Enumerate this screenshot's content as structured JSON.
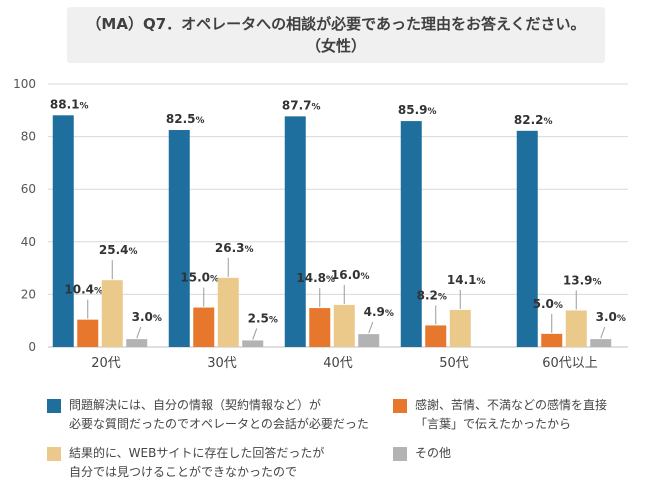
{
  "title": {
    "line1": "（MA）Q7．オペレータへの相談が必要であった理由をお答えください。",
    "line2": "（女性）"
  },
  "colors": {
    "series": [
      "#1f6f9e",
      "#e8772e",
      "#ebc98a",
      "#b3b3b3"
    ],
    "grid": "#d9d9d9",
    "title_bg": "#f0f0f0"
  },
  "chart_data": {
    "type": "bar",
    "categories": [
      "20代",
      "30代",
      "40代",
      "50代",
      "60代以上"
    ],
    "ylim": [
      0,
      100
    ],
    "yticks": [
      0,
      20,
      40,
      60,
      80,
      100
    ],
    "xlabel": "",
    "ylabel": "",
    "grid": true,
    "legend_position": "bottom",
    "unit": "%",
    "series": [
      {
        "name_lines": [
          "問題解決には、自分の情報（契約情報など）が",
          "必要な質問だったのでオペレータとの会話が必要だった"
        ],
        "values": [
          88.1,
          82.5,
          87.7,
          85.9,
          82.2
        ],
        "labels": [
          "88.1",
          "82.5",
          "87.7",
          "85.9",
          "82.2"
        ]
      },
      {
        "name_lines": [
          "感謝、苦情、不満などの感情を直接",
          "「言葉」で伝えたかったから"
        ],
        "values": [
          10.4,
          15.0,
          14.8,
          8.2,
          5.0
        ],
        "labels": [
          "10.4",
          "15.0",
          "14.8",
          "8.2",
          "5.0"
        ]
      },
      {
        "name_lines": [
          "結果的に、WEBサイトに存在した回答だったが",
          "自分では見つけることができなかったので"
        ],
        "values": [
          25.4,
          26.3,
          16.0,
          14.1,
          13.9
        ],
        "labels": [
          "25.4",
          "26.3",
          "16.0",
          "14.1",
          "13.9"
        ]
      },
      {
        "name_lines": [
          "その他"
        ],
        "values": [
          3.0,
          2.5,
          4.9,
          0.0,
          3.0
        ],
        "labels": [
          "3.0",
          "2.5",
          "4.9",
          "",
          "3.0"
        ]
      }
    ]
  }
}
